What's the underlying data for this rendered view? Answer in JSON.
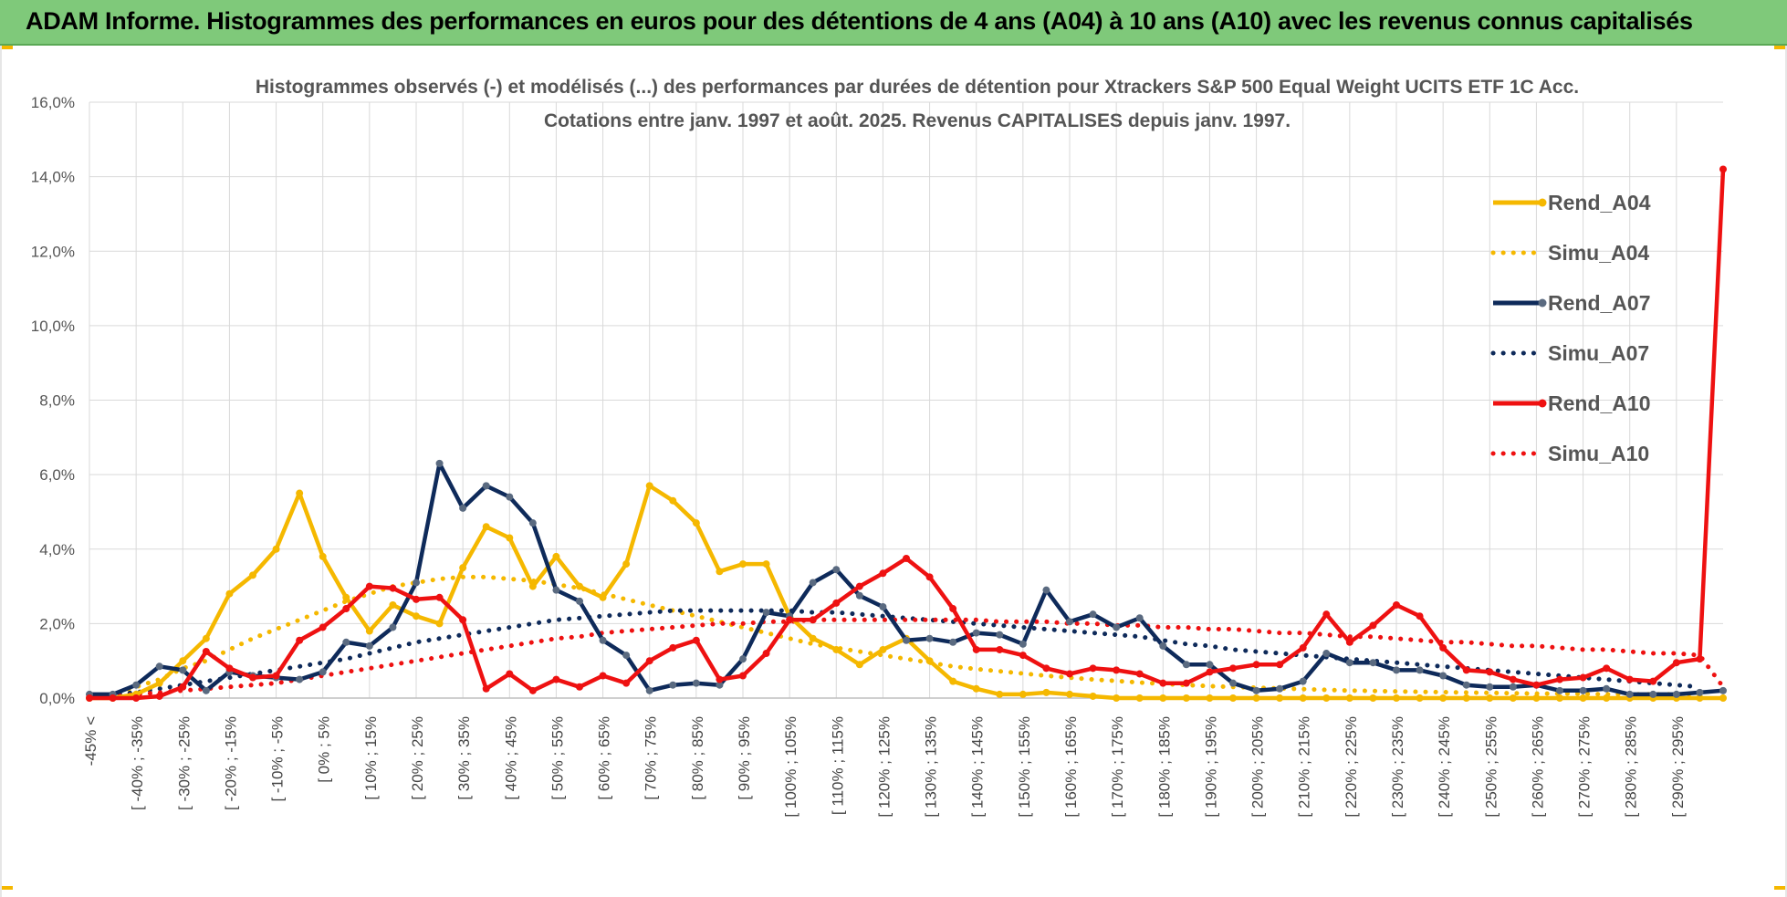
{
  "banner": {
    "title": "ADAM Informe. Histogrammes des performances en euros pour des détentions de 4 ans (A04) à 10 ans (A10) avec les revenus connus capitalisés"
  },
  "chart_data": {
    "type": "line",
    "title": "Histogrammes observés (-) et modélisés (...) des performances par durées de détention pour Xtrackers S&P 500 Equal Weight UCITS ETF 1C Acc.",
    "subtitle": "Cotations entre janv. 1997 et août. 2025. Revenus CAPITALISES depuis janv. 1997.",
    "xlabel": "",
    "ylabel": "",
    "ylim": [
      0,
      16
    ],
    "y_ticks": [
      "0,0%",
      "2,0%",
      "4,0%",
      "6,0%",
      "8,0%",
      "10,0%",
      "12,0%",
      "14,0%",
      "16,0%"
    ],
    "grid": true,
    "legend_position": "right",
    "x_tick_labels": [
      "-45% <",
      "[ -40% ; -35%",
      "[ -30% ; -25%",
      "[ -20% ; -15%",
      "[ -10% ; -5%",
      "[ 0% ; 5%",
      "[ 10% ; 15%",
      "[ 20% ; 25%",
      "[ 30% ; 35%",
      "[ 40% ; 45%",
      "[ 50% ; 55%",
      "[ 60% ; 65%",
      "[ 70% ; 75%",
      "[ 80% ; 85%",
      "[ 90% ; 95%",
      "[ 100% ; 105%",
      "[ 110% ; 115%",
      "[ 120% ; 125%",
      "[ 130% ; 135%",
      "[ 140% ; 145%",
      "[ 150% ; 155%",
      "[ 160% ; 165%",
      "[ 170% ; 175%",
      "[ 180% ; 185%",
      "[ 190% ; 195%",
      "[ 200% ; 205%",
      "[ 210% ; 215%",
      "[ 220% ; 225%",
      "[ 230% ; 235%",
      "[ 240% ; 245%",
      "[ 250% ; 255%",
      "[ 260% ; 265%",
      "[ 270% ; 275%",
      "[ 280% ; 285%",
      "[ 290% ; 295%"
    ],
    "n_bins": 70,
    "series": [
      {
        "name": "Rend_A04",
        "style": "solid",
        "color": "#f5b800",
        "marker_color": "#f5b800",
        "values": [
          0.0,
          0.0,
          0.1,
          0.4,
          1.0,
          1.6,
          2.8,
          3.3,
          4.0,
          5.5,
          3.8,
          2.7,
          1.8,
          2.5,
          2.2,
          2.0,
          3.5,
          4.6,
          4.3,
          3.0,
          3.8,
          3.0,
          2.7,
          3.6,
          5.7,
          5.3,
          4.7,
          3.4,
          3.6,
          3.6,
          2.2,
          1.6,
          1.3,
          0.9,
          1.3,
          1.6,
          1.0,
          0.45,
          0.25,
          0.1,
          0.1,
          0.15,
          0.1,
          0.05,
          0.0,
          0.0,
          0.0,
          0.0,
          0.0,
          0.0,
          0.0,
          0.0,
          0.0,
          0.0,
          0.0,
          0.0,
          0.0,
          0.0,
          0.0,
          0.0,
          0.0,
          0.0,
          0.0,
          0.0,
          0.0,
          0.0,
          0.0,
          0.0,
          0.0,
          0.0
        ]
      },
      {
        "name": "Simu_A04",
        "style": "dotted",
        "color": "#f5b800",
        "values": [
          0.0,
          0.1,
          0.3,
          0.5,
          0.8,
          1.0,
          1.3,
          1.6,
          1.85,
          2.1,
          2.35,
          2.6,
          2.8,
          3.0,
          3.1,
          3.2,
          3.25,
          3.25,
          3.2,
          3.15,
          3.05,
          2.95,
          2.8,
          2.65,
          2.5,
          2.35,
          2.2,
          2.05,
          1.9,
          1.75,
          1.6,
          1.45,
          1.35,
          1.25,
          1.15,
          1.05,
          0.95,
          0.85,
          0.78,
          0.72,
          0.66,
          0.6,
          0.55,
          0.5,
          0.46,
          0.42,
          0.38,
          0.35,
          0.32,
          0.3,
          0.28,
          0.26,
          0.24,
          0.22,
          0.2,
          0.19,
          0.18,
          0.17,
          0.16,
          0.15,
          0.14,
          0.13,
          0.12,
          0.12,
          0.11,
          0.1,
          0.1,
          0.1,
          0.1,
          0.1
        ]
      },
      {
        "name": "Rend_A07",
        "style": "solid",
        "color": "#0e2a5a",
        "marker_color": "#5a6a80",
        "values": [
          0.1,
          0.1,
          0.35,
          0.85,
          0.75,
          0.2,
          0.7,
          0.6,
          0.55,
          0.5,
          0.7,
          1.5,
          1.4,
          1.9,
          3.1,
          6.3,
          5.1,
          5.7,
          5.4,
          4.7,
          2.9,
          2.6,
          1.55,
          1.15,
          0.2,
          0.35,
          0.4,
          0.35,
          1.05,
          2.3,
          2.2,
          3.1,
          3.45,
          2.75,
          2.45,
          1.55,
          1.6,
          1.5,
          1.75,
          1.7,
          1.45,
          2.9,
          2.05,
          2.25,
          1.9,
          2.15,
          1.4,
          0.9,
          0.9,
          0.4,
          0.2,
          0.25,
          0.45,
          1.2,
          0.95,
          0.95,
          0.75,
          0.75,
          0.6,
          0.35,
          0.3,
          0.3,
          0.35,
          0.2,
          0.2,
          0.25,
          0.1,
          0.1,
          0.1,
          0.15
        ]
      },
      {
        "name": "Simu_A07",
        "style": "dotted",
        "color": "#0e2a5a",
        "values": [
          0.05,
          0.1,
          0.15,
          0.25,
          0.35,
          0.45,
          0.55,
          0.65,
          0.75,
          0.85,
          0.95,
          1.05,
          1.2,
          1.35,
          1.5,
          1.6,
          1.7,
          1.8,
          1.9,
          2.0,
          2.1,
          2.15,
          2.2,
          2.25,
          2.3,
          2.35,
          2.35,
          2.35,
          2.35,
          2.35,
          2.35,
          2.3,
          2.3,
          2.25,
          2.2,
          2.15,
          2.1,
          2.05,
          2.0,
          1.95,
          1.9,
          1.85,
          1.8,
          1.75,
          1.7,
          1.65,
          1.55,
          1.45,
          1.4,
          1.3,
          1.25,
          1.2,
          1.15,
          1.1,
          1.05,
          1.0,
          0.95,
          0.9,
          0.85,
          0.8,
          0.75,
          0.7,
          0.65,
          0.6,
          0.55,
          0.5,
          0.45,
          0.4,
          0.35,
          0.3
        ]
      },
      {
        "name": "Rend_A10",
        "style": "solid",
        "color": "#ee1111",
        "marker_color": "#ee1111",
        "values": [
          0.0,
          0.0,
          0.0,
          0.05,
          0.3,
          1.25,
          0.8,
          0.55,
          0.6,
          1.55,
          1.9,
          2.4,
          3.0,
          2.95,
          2.65,
          2.7,
          2.1,
          0.25,
          0.65,
          0.2,
          0.5,
          0.3,
          0.6,
          0.4,
          1.0,
          1.35,
          1.55,
          0.5,
          0.6,
          1.2,
          2.1,
          2.1,
          2.55,
          3.0,
          3.35,
          3.75,
          3.25,
          2.4,
          1.3,
          1.3,
          1.15,
          0.8,
          0.65,
          0.8,
          0.75,
          0.65,
          0.4,
          0.4,
          0.7,
          0.8,
          0.9,
          0.9,
          1.35,
          2.25,
          1.5,
          1.95,
          2.5,
          2.2,
          1.35,
          0.75,
          0.7,
          0.5,
          0.35,
          0.5,
          0.55,
          0.8,
          0.5,
          0.45,
          0.95,
          1.05
        ]
      },
      {
        "name": "Simu_A10",
        "style": "dotted",
        "color": "#ee1111",
        "values": [
          0.0,
          0.05,
          0.1,
          0.15,
          0.2,
          0.25,
          0.3,
          0.35,
          0.4,
          0.5,
          0.6,
          0.7,
          0.8,
          0.9,
          1.0,
          1.1,
          1.2,
          1.3,
          1.4,
          1.5,
          1.6,
          1.65,
          1.75,
          1.8,
          1.85,
          1.9,
          1.95,
          2.0,
          2.0,
          2.05,
          2.05,
          2.1,
          2.1,
          2.1,
          2.1,
          2.1,
          2.1,
          2.1,
          2.1,
          2.05,
          2.05,
          2.05,
          2.0,
          2.0,
          1.95,
          1.95,
          1.9,
          1.9,
          1.85,
          1.85,
          1.8,
          1.75,
          1.75,
          1.7,
          1.65,
          1.65,
          1.6,
          1.55,
          1.5,
          1.5,
          1.45,
          1.4,
          1.4,
          1.35,
          1.3,
          1.3,
          1.25,
          1.2,
          1.2,
          1.15
        ]
      }
    ],
    "final_bin": {
      "Rend_A04": 0.0,
      "Rend_A07": 0.2,
      "Rend_A10": 14.2,
      "Simu_A10": 0.3
    }
  }
}
